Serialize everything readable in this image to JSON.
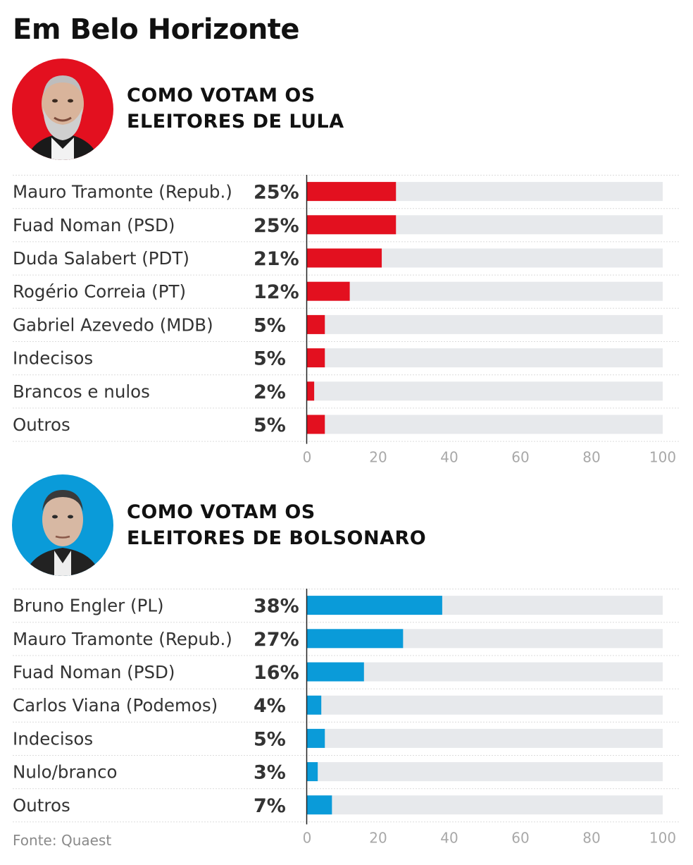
{
  "title": "Em Belo Horizonte",
  "source": "Fonte: Quaest",
  "colors": {
    "lula": "#e3101f",
    "bolsonaro": "#0a9bd9",
    "track": "#e7e9ec",
    "ticks": "#a8a8a8"
  },
  "sections": [
    {
      "title_line1": "COMO VOTAM OS",
      "title_line2": "ELEITORES DE LULA",
      "avatar_icon": "lula-portrait-icon"
    },
    {
      "title_line1": "COMO VOTAM OS",
      "title_line2": "ELEITORES DE BOLSONARO",
      "avatar_icon": "bolsonaro-portrait-icon"
    }
  ],
  "chart_data": [
    {
      "type": "bar",
      "orientation": "horizontal",
      "categories": [
        "Mauro Tramonte (Repub.)",
        "Fuad Noman (PSD)",
        "Duda Salabert (PDT)",
        "Rogério Correia (PT)",
        "Gabriel Azevedo (MDB)",
        "Indecisos",
        "Brancos e nulos",
        "Outros"
      ],
      "values": [
        25,
        25,
        21,
        12,
        5,
        5,
        2,
        5
      ],
      "value_labels": [
        "25%",
        "25%",
        "21%",
        "12%",
        "5%",
        "5%",
        "2%",
        "5%"
      ],
      "xlim": [
        0,
        100
      ],
      "xticks": [
        0,
        20,
        40,
        60,
        80,
        100
      ],
      "tick_labels": [
        "0",
        "20",
        "40",
        "60",
        "80",
        "100"
      ],
      "bar_color": "#e3101f"
    },
    {
      "type": "bar",
      "orientation": "horizontal",
      "categories": [
        "Bruno Engler (PL)",
        "Mauro Tramonte (Repub.)",
        "Fuad Noman (PSD)",
        "Carlos Viana (Podemos)",
        "Indecisos",
        "Nulo/branco",
        "Outros"
      ],
      "values": [
        38,
        27,
        16,
        4,
        5,
        3,
        7
      ],
      "value_labels": [
        "38%",
        "27%",
        "16%",
        "4%",
        "5%",
        "3%",
        "7%"
      ],
      "xlim": [
        0,
        100
      ],
      "xticks": [
        0,
        20,
        40,
        60,
        80,
        100
      ],
      "tick_labels": [
        "0",
        "20",
        "40",
        "60",
        "80",
        "100"
      ],
      "bar_color": "#0a9bd9"
    }
  ]
}
